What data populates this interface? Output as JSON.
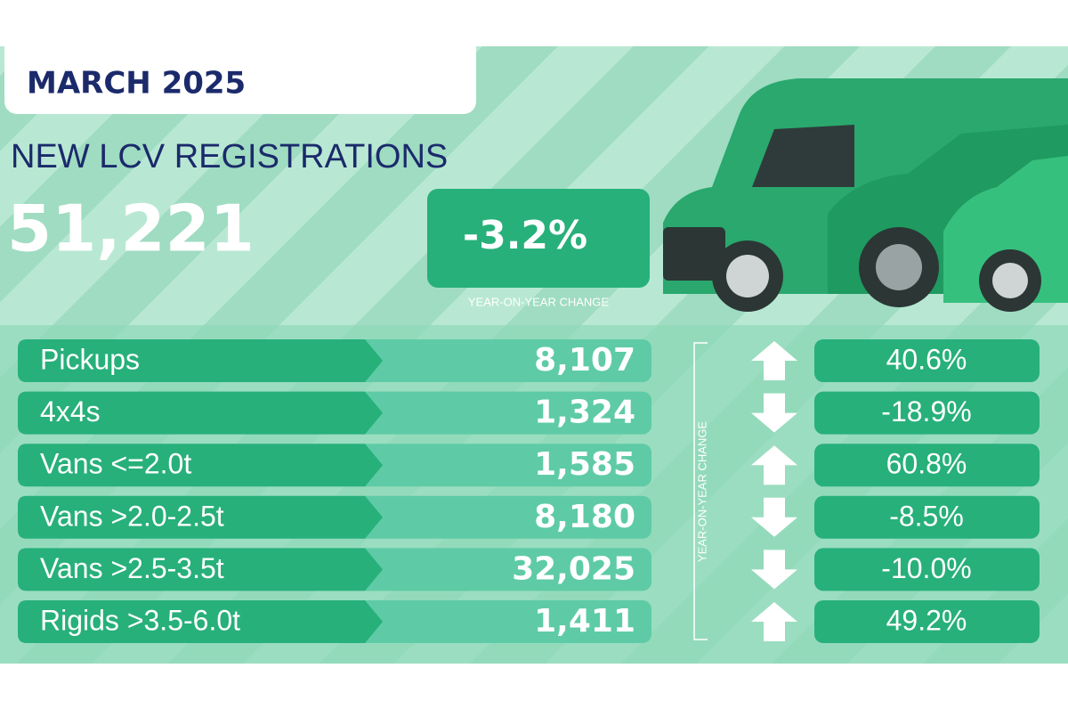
{
  "header": {
    "period": "MARCH 2025",
    "title": "NEW LCV REGISTRATIONS",
    "total": "51,221",
    "change": "-3.2%",
    "change_label": "YEAR-ON-YEAR CHANGE"
  },
  "table": {
    "side_label": "YEAR-ON-YEAR CHANGE",
    "rows": [
      [
        "Pickups",
        "8,107",
        "40.6%"
      ],
      [
        "4x4s",
        "1,324",
        "-18.9%"
      ],
      [
        "Vans <=2.0t",
        "1,585",
        "60.8%"
      ],
      [
        "Vans >2.0-2.5t",
        "8,180",
        "-8.5%"
      ],
      [
        "Vans >2.5-3.5t",
        "32,025",
        "-10.0%"
      ],
      [
        "Rigids >3.5-6.0t",
        "1,411",
        "49.2%"
      ]
    ]
  }
}
